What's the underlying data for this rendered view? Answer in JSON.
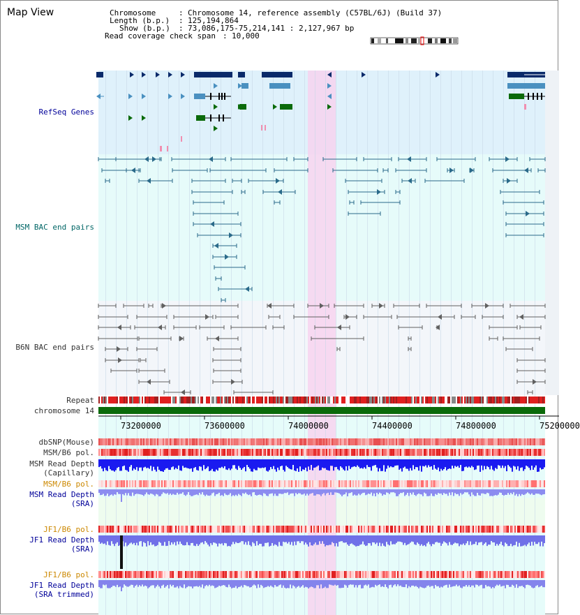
{
  "view_title": "Map View",
  "info": {
    "chromosome_key": "Chromosome",
    "chromosome_val": "Chromosome 14, reference assembly (C57BL/6J) (Build 37)",
    "length_key": "Length (b.p.)",
    "length_val": "125,194,864",
    "show_key": "Show (b.p.)",
    "show_val": "73,086,175-75,214,141 : 2,127,967 bp",
    "span_key": "Read coverage check span",
    "span_val": "10,000"
  },
  "tracks": {
    "refseq": "RefSeq Genes",
    "msm_bac": "MSM BAC end pairs",
    "b6n_bac": "B6N BAC end pairs",
    "repeat": "Repeat",
    "chromosome": "chromosome 14",
    "dbsnp": "dbSNP(Mouse)",
    "msm_b6_pol_1": "MSM/B6 pol.",
    "msm_read_depth_cap": "MSM Read Depth\n(Capillary)",
    "msm_b6_pol_2": "MSM/B6 pol.",
    "msm_read_depth_sra": "MSM Read Depth\n(SRA)",
    "jf1_b6_pol_1": "JF1/B6 pol.",
    "jf1_read_depth_sra": "JF1 Read Depth\n(SRA)",
    "jf1_b6_pol_2": "JF1/B6 pol.",
    "jf1_read_depth_trim": "JF1 Read Depth\n(SRA trimmed)"
  },
  "axis_ticks": [
    "73200000",
    "73600000",
    "74000000",
    "74400000",
    "74800000",
    "75200000"
  ],
  "colors": {
    "refseq_bg": "#dff1fb",
    "msm_bac_bg": "#e6fbfa",
    "b6n_bac_bg": "#f3f6fa",
    "lower_bg": "#e6fcfa",
    "sra_bg": "#eefcef",
    "highlight": "#f7d3ef",
    "gene_navy": "#0a2a6a",
    "gene_steel": "#4a90c0",
    "gene_green": "#0a6a0a",
    "chromosome_bar": "#0a6a0a",
    "msm_track": "#2a6a8a",
    "b6n_track": "#606060",
    "label_navy": "#000099",
    "label_teal": "#006666",
    "label_orange": "#cc8800",
    "label_gray": "#333333"
  }
}
